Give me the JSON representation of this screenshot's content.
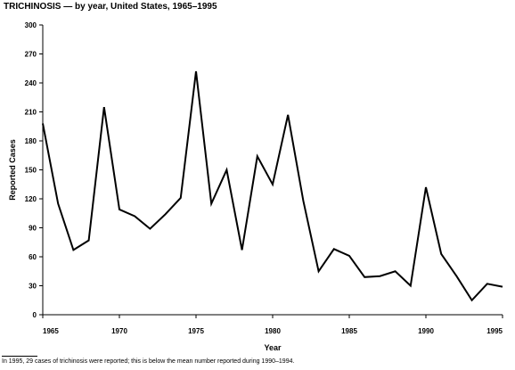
{
  "chart_data": {
    "type": "line",
    "title": "TRICHINOSIS — by year, United States, 1965–1995",
    "xlabel": "Year",
    "ylabel": "Reported Cases",
    "xlim": [
      1965,
      1995
    ],
    "ylim": [
      0,
      300
    ],
    "x_ticks": [
      1965,
      1970,
      1975,
      1980,
      1985,
      1990,
      1995
    ],
    "x_tick_labels": [
      "1965",
      "1970",
      "1975",
      "1980",
      "1985",
      "1990",
      "1995"
    ],
    "y_ticks": [
      0,
      30,
      60,
      90,
      120,
      150,
      180,
      210,
      240,
      270,
      300
    ],
    "y_tick_labels": [
      "0",
      "30",
      "60",
      "90",
      "120",
      "150",
      "180",
      "210",
      "240",
      "270",
      "300"
    ],
    "grid": false,
    "series": [
      {
        "x": [
          1965,
          1966,
          1967,
          1968,
          1969,
          1970,
          1971,
          1972,
          1973,
          1974,
          1975,
          1976,
          1977,
          1978,
          1979,
          1980,
          1981,
          1982,
          1983,
          1984,
          1985,
          1986,
          1987,
          1988,
          1989,
          1990,
          1991,
          1992,
          1993,
          1994,
          1995
        ],
        "values": [
          198,
          115,
          67,
          77,
          215,
          109,
          102,
          89,
          104,
          121,
          252,
          115,
          150,
          67,
          164,
          135,
          207,
          118,
          45,
          68,
          61,
          39,
          40,
          45,
          30,
          132,
          63,
          40,
          15,
          32,
          29
        ]
      }
    ],
    "footnote": "In 1995, 29 cases of trichinosis were reported; this is below the mean number reported during 1990–1994."
  }
}
